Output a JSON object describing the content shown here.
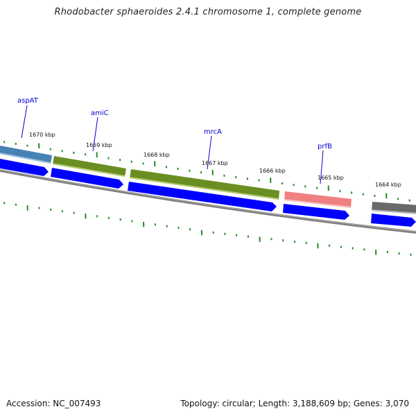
{
  "title": "Rhodobacter sphaeroides 2.4.1 chromosome 1, complete genome",
  "accession": "Accession: NC_007493",
  "summary": "Topology: circular; Length: 3,188,609 bp; Genes: 3,070",
  "colors": {
    "plus_strand_cds": "#0000ff",
    "outline": "#7f7f7f",
    "ticks": "#228b22",
    "label_text": "#0000cc",
    "gene_blue": "#4682b4",
    "gene_green": "#6b8e23",
    "gene_red": "#f08080",
    "gene_gray": "#696969"
  },
  "ruler_labels": [
    "1670 kbp",
    "1669 kbp",
    "1668 kbp",
    "1667 kbp",
    "1666 kbp",
    "1665 kbp",
    "1664 kbp"
  ],
  "gene_labels": [
    {
      "name": "aspAT",
      "color": "gene_blue"
    },
    {
      "name": "amiC",
      "color": "gene_green"
    },
    {
      "name": "mrcA",
      "color": "gene_green"
    },
    {
      "name": "prfB",
      "color": "gene_red"
    }
  ]
}
